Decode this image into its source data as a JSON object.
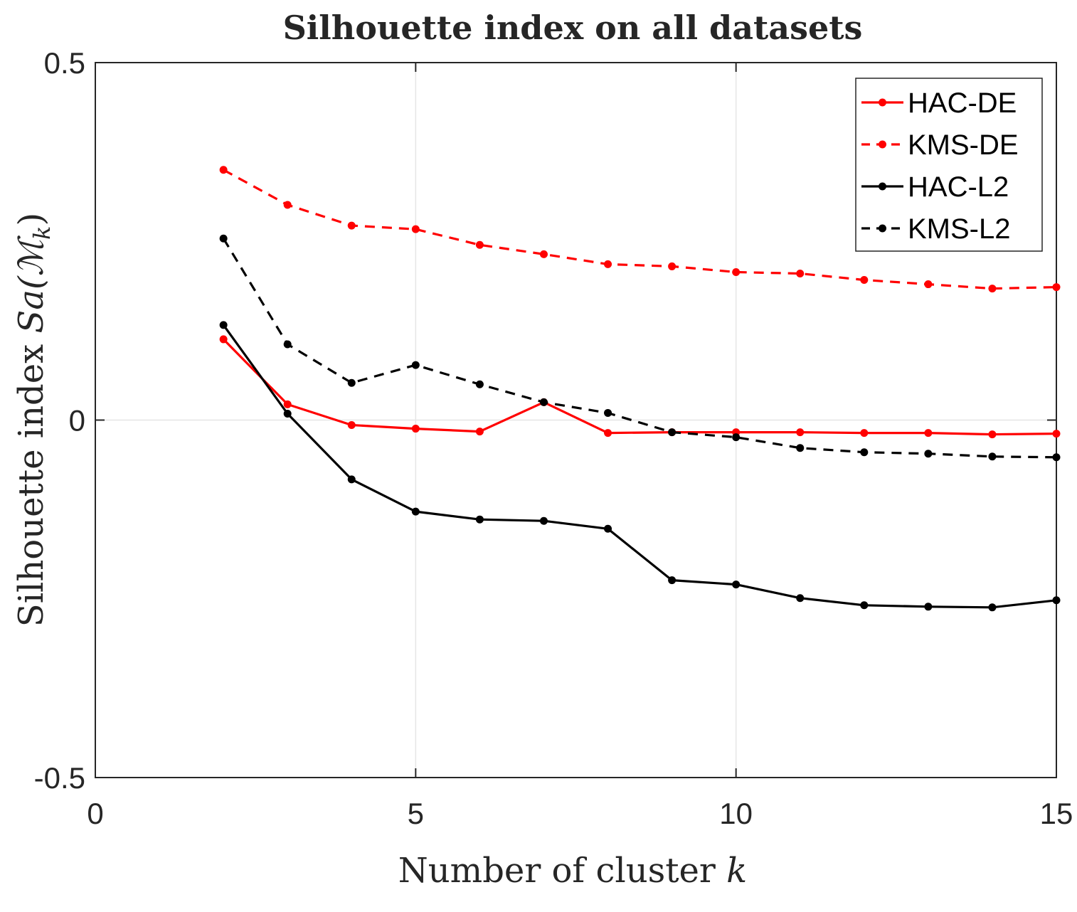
{
  "chart_data": {
    "type": "line",
    "title": "Silhouette index on all datasets",
    "xlabel": "Number of cluster",
    "xlabel_var": "k",
    "ylabel": "Silhouette index",
    "ylabel_math": "Sa(ℳ",
    "ylabel_sub": "k",
    "ylabel_close": ")",
    "xlim": [
      0,
      15
    ],
    "ylim": [
      -0.5,
      0.5
    ],
    "xticks": [
      0,
      5,
      10,
      15
    ],
    "xtick_labels": [
      "0",
      "5",
      "10",
      "15"
    ],
    "yticks": [
      -0.5,
      0,
      0.5
    ],
    "ytick_labels": [
      "-0.5",
      "0",
      "0.5"
    ],
    "grid": true,
    "legend_position": "top-right",
    "x": [
      2,
      3,
      4,
      5,
      6,
      7,
      8,
      9,
      10,
      11,
      12,
      13,
      14,
      15
    ],
    "series": [
      {
        "name": "HAC-DE",
        "color": "#ff0000",
        "dashed": false,
        "values": [
          0.113,
          0.022,
          -0.007,
          -0.012,
          -0.016,
          0.025,
          -0.018,
          -0.017,
          -0.017,
          -0.017,
          -0.018,
          -0.018,
          -0.02,
          -0.019
        ]
      },
      {
        "name": "KMS-DE",
        "color": "#ff0000",
        "dashed": true,
        "values": [
          0.35,
          0.301,
          0.272,
          0.267,
          0.245,
          0.232,
          0.218,
          0.215,
          0.207,
          0.205,
          0.196,
          0.19,
          0.184,
          0.186
        ]
      },
      {
        "name": "HAC-L2",
        "color": "#000000",
        "dashed": false,
        "values": [
          0.133,
          0.009,
          -0.083,
          -0.128,
          -0.139,
          -0.141,
          -0.152,
          -0.224,
          -0.23,
          -0.249,
          -0.259,
          -0.261,
          -0.262,
          -0.252
        ]
      },
      {
        "name": "KMS-L2",
        "color": "#000000",
        "dashed": true,
        "values": [
          0.254,
          0.106,
          0.052,
          0.077,
          0.05,
          0.025,
          0.01,
          -0.017,
          -0.024,
          -0.039,
          -0.045,
          -0.047,
          -0.051,
          -0.052
        ]
      }
    ]
  }
}
